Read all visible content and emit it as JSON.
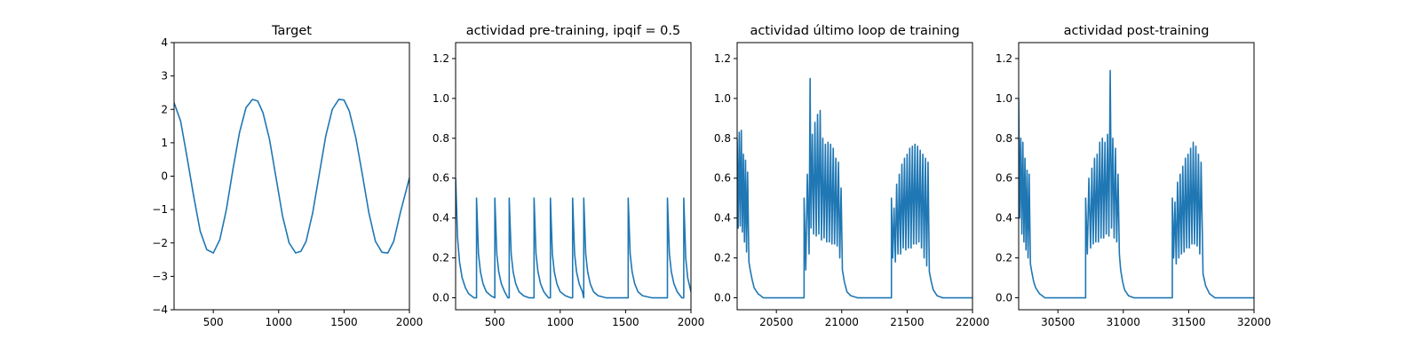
{
  "chart_data": [
    {
      "type": "line",
      "title": "Target",
      "xlim": [
        200,
        2000
      ],
      "ylim": [
        -4,
        4
      ],
      "xticks": [
        500,
        1000,
        1500,
        2000
      ],
      "yticks": [
        -4,
        -3,
        -2,
        -1,
        0,
        1,
        2,
        3,
        4
      ],
      "color": "#1f77b4",
      "series": [
        {
          "x": [
            200,
            250,
            300,
            350,
            400,
            450,
            500,
            550,
            600,
            650,
            700,
            750,
            800,
            840,
            880,
            930,
            980,
            1030,
            1080,
            1130,
            1170,
            1210,
            1260,
            1310,
            1360,
            1410,
            1460,
            1500,
            1540,
            1590,
            1640,
            1690,
            1740,
            1790,
            1835,
            1880,
            1930,
            1980,
            2000
          ],
          "y": [
            2.2,
            1.65,
            0.55,
            -0.6,
            -1.65,
            -2.2,
            -2.3,
            -1.9,
            -1.0,
            0.2,
            1.3,
            2.05,
            2.3,
            2.25,
            1.9,
            1.1,
            -0.05,
            -1.2,
            -2.0,
            -2.3,
            -2.25,
            -1.95,
            -1.1,
            0.05,
            1.2,
            2.0,
            2.3,
            2.28,
            1.95,
            1.15,
            0.05,
            -1.1,
            -1.95,
            -2.28,
            -2.3,
            -1.95,
            -1.1,
            -0.35,
            -0.05
          ]
        }
      ]
    },
    {
      "type": "line",
      "title": "actividad pre-training, ipqif = 0.5",
      "xlim": [
        200,
        2000
      ],
      "ylim": [
        -0.06,
        1.28
      ],
      "xticks": [
        500,
        1000,
        1500,
        2000
      ],
      "yticks": [
        0.0,
        0.2,
        0.4,
        0.6,
        0.8,
        1.0,
        1.2
      ],
      "color": "#1f77b4",
      "series": [
        {
          "x": [
            200,
            215,
            230,
            250,
            275,
            300,
            340,
            360,
            360,
            375,
            390,
            410,
            435,
            470,
            500,
            500,
            515,
            530,
            550,
            575,
            600,
            610,
            610,
            625,
            640,
            660,
            685,
            720,
            760,
            800,
            800,
            815,
            830,
            850,
            875,
            910,
            925,
            925,
            940,
            955,
            975,
            1000,
            1040,
            1080,
            1095,
            1095,
            1110,
            1125,
            1145,
            1170,
            1180,
            1180,
            1195,
            1210,
            1230,
            1255,
            1290,
            1350,
            1420,
            1490,
            1520,
            1520,
            1535,
            1550,
            1570,
            1595,
            1630,
            1700,
            1760,
            1820,
            1820,
            1835,
            1850,
            1870,
            1895,
            1930,
            1945,
            1945,
            1960,
            1975,
            2000
          ],
          "y": [
            0.6,
            0.3,
            0.18,
            0.1,
            0.05,
            0.02,
            0.0,
            0.0,
            0.5,
            0.22,
            0.13,
            0.07,
            0.03,
            0.01,
            0.0,
            0.5,
            0.22,
            0.13,
            0.07,
            0.03,
            0.0,
            0.0,
            0.5,
            0.22,
            0.13,
            0.07,
            0.03,
            0.01,
            0.0,
            0.0,
            0.5,
            0.22,
            0.13,
            0.07,
            0.03,
            0.0,
            0.0,
            0.5,
            0.22,
            0.13,
            0.07,
            0.03,
            0.01,
            0.0,
            0.0,
            0.5,
            0.22,
            0.13,
            0.07,
            0.03,
            0.0,
            0.5,
            0.22,
            0.13,
            0.07,
            0.03,
            0.01,
            0.0,
            0.0,
            0.0,
            0.0,
            0.5,
            0.22,
            0.13,
            0.07,
            0.03,
            0.01,
            0.0,
            0.0,
            0.0,
            0.5,
            0.22,
            0.13,
            0.07,
            0.03,
            0.0,
            0.0,
            0.5,
            0.2,
            0.1,
            0.03
          ]
        }
      ]
    },
    {
      "type": "line",
      "title": "actividad último loop de training",
      "xlim": [
        20200,
        22000
      ],
      "ylim": [
        -0.06,
        1.28
      ],
      "xticks": [
        20500,
        21000,
        21500,
        22000
      ],
      "yticks": [
        0.0,
        0.2,
        0.4,
        0.6,
        0.8,
        1.0,
        1.2
      ],
      "color": "#1f77b4",
      "series": [
        {
          "x": [
            20200,
            20208,
            20216,
            20224,
            20232,
            20240,
            20248,
            20256,
            20264,
            20272,
            20280,
            20290,
            20300,
            20315,
            20330,
            20360,
            20400,
            20450,
            20550,
            20650,
            20712,
            20712,
            20725,
            20737,
            20750,
            20758,
            20765,
            20775,
            20785,
            20795,
            20805,
            20815,
            20825,
            20835,
            20845,
            20855,
            20865,
            20875,
            20885,
            20895,
            20905,
            20915,
            20925,
            20935,
            20945,
            20955,
            20965,
            20975,
            20985,
            20995,
            21005,
            21020,
            21040,
            21070,
            21120,
            21200,
            21300,
            21380,
            21380,
            21390,
            21400,
            21410,
            21420,
            21430,
            21440,
            21450,
            21460,
            21470,
            21480,
            21490,
            21500,
            21510,
            21520,
            21530,
            21540,
            21550,
            21560,
            21570,
            21580,
            21590,
            21600,
            21610,
            21620,
            21630,
            21640,
            21650,
            21660,
            21670,
            21685,
            21700,
            21730,
            21770,
            21850,
            22000
          ],
          "y": [
            0.8,
            0.35,
            0.83,
            0.36,
            0.84,
            0.33,
            0.72,
            0.28,
            0.69,
            0.23,
            0.63,
            0.18,
            0.14,
            0.09,
            0.05,
            0.02,
            0.0,
            0.0,
            0.0,
            0.0,
            0.0,
            0.5,
            0.14,
            0.62,
            0.22,
            1.1,
            0.35,
            0.82,
            0.32,
            0.88,
            0.31,
            0.92,
            0.32,
            0.94,
            0.29,
            0.8,
            0.3,
            0.77,
            0.28,
            0.78,
            0.28,
            0.77,
            0.27,
            0.75,
            0.27,
            0.7,
            0.26,
            0.68,
            0.2,
            0.55,
            0.14,
            0.08,
            0.03,
            0.01,
            0.0,
            0.0,
            0.0,
            0.0,
            0.5,
            0.2,
            0.45,
            0.18,
            0.57,
            0.22,
            0.62,
            0.22,
            0.67,
            0.25,
            0.7,
            0.24,
            0.72,
            0.25,
            0.75,
            0.25,
            0.76,
            0.27,
            0.77,
            0.27,
            0.76,
            0.28,
            0.74,
            0.25,
            0.72,
            0.2,
            0.7,
            0.16,
            0.68,
            0.13,
            0.08,
            0.04,
            0.01,
            0.0,
            0.0,
            0.0
          ]
        }
      ]
    },
    {
      "type": "line",
      "title": "actividad post-training",
      "xlim": [
        30200,
        32000
      ],
      "ylim": [
        -0.06,
        1.28
      ],
      "xticks": [
        30500,
        31000,
        31500,
        32000
      ],
      "yticks": [
        0.0,
        0.2,
        0.4,
        0.6,
        0.8,
        1.0,
        1.2
      ],
      "color": "#1f77b4",
      "series": [
        {
          "x": [
            30200,
            30208,
            30216,
            30224,
            30232,
            30240,
            30248,
            30256,
            30264,
            30272,
            30280,
            30290,
            30300,
            30315,
            30330,
            30360,
            30400,
            30450,
            30550,
            30650,
            30712,
            30712,
            30725,
            30737,
            30750,
            30760,
            30770,
            30780,
            30790,
            30800,
            30810,
            30820,
            30830,
            30840,
            30850,
            30860,
            30870,
            30880,
            30890,
            30900,
            30910,
            30920,
            30930,
            30940,
            30950,
            30960,
            30970,
            30980,
            30995,
            31010,
            31040,
            31080,
            31150,
            31250,
            31370,
            31375,
            31375,
            31385,
            31395,
            31405,
            31415,
            31425,
            31435,
            31445,
            31455,
            31465,
            31475,
            31485,
            31495,
            31505,
            31515,
            31525,
            31535,
            31545,
            31555,
            31565,
            31575,
            31585,
            31595,
            31610,
            31630,
            31660,
            31700,
            31800,
            32000
          ],
          "y": [
            1.0,
            0.4,
            0.8,
            0.32,
            0.78,
            0.28,
            0.7,
            0.24,
            0.64,
            0.2,
            0.62,
            0.17,
            0.13,
            0.08,
            0.05,
            0.02,
            0.0,
            0.0,
            0.0,
            0.0,
            0.0,
            0.5,
            0.22,
            0.6,
            0.25,
            0.65,
            0.27,
            0.7,
            0.28,
            0.72,
            0.28,
            0.78,
            0.3,
            0.8,
            0.3,
            0.78,
            0.32,
            0.82,
            0.31,
            1.14,
            0.35,
            0.8,
            0.3,
            0.75,
            0.28,
            0.62,
            0.22,
            0.14,
            0.08,
            0.04,
            0.01,
            0.0,
            0.0,
            0.0,
            0.0,
            0.0,
            0.5,
            0.2,
            0.48,
            0.17,
            0.58,
            0.2,
            0.62,
            0.22,
            0.66,
            0.23,
            0.7,
            0.25,
            0.72,
            0.25,
            0.75,
            0.27,
            0.78,
            0.27,
            0.76,
            0.26,
            0.72,
            0.22,
            0.68,
            0.12,
            0.06,
            0.02,
            0.0,
            0.0,
            0.0
          ]
        }
      ]
    }
  ]
}
